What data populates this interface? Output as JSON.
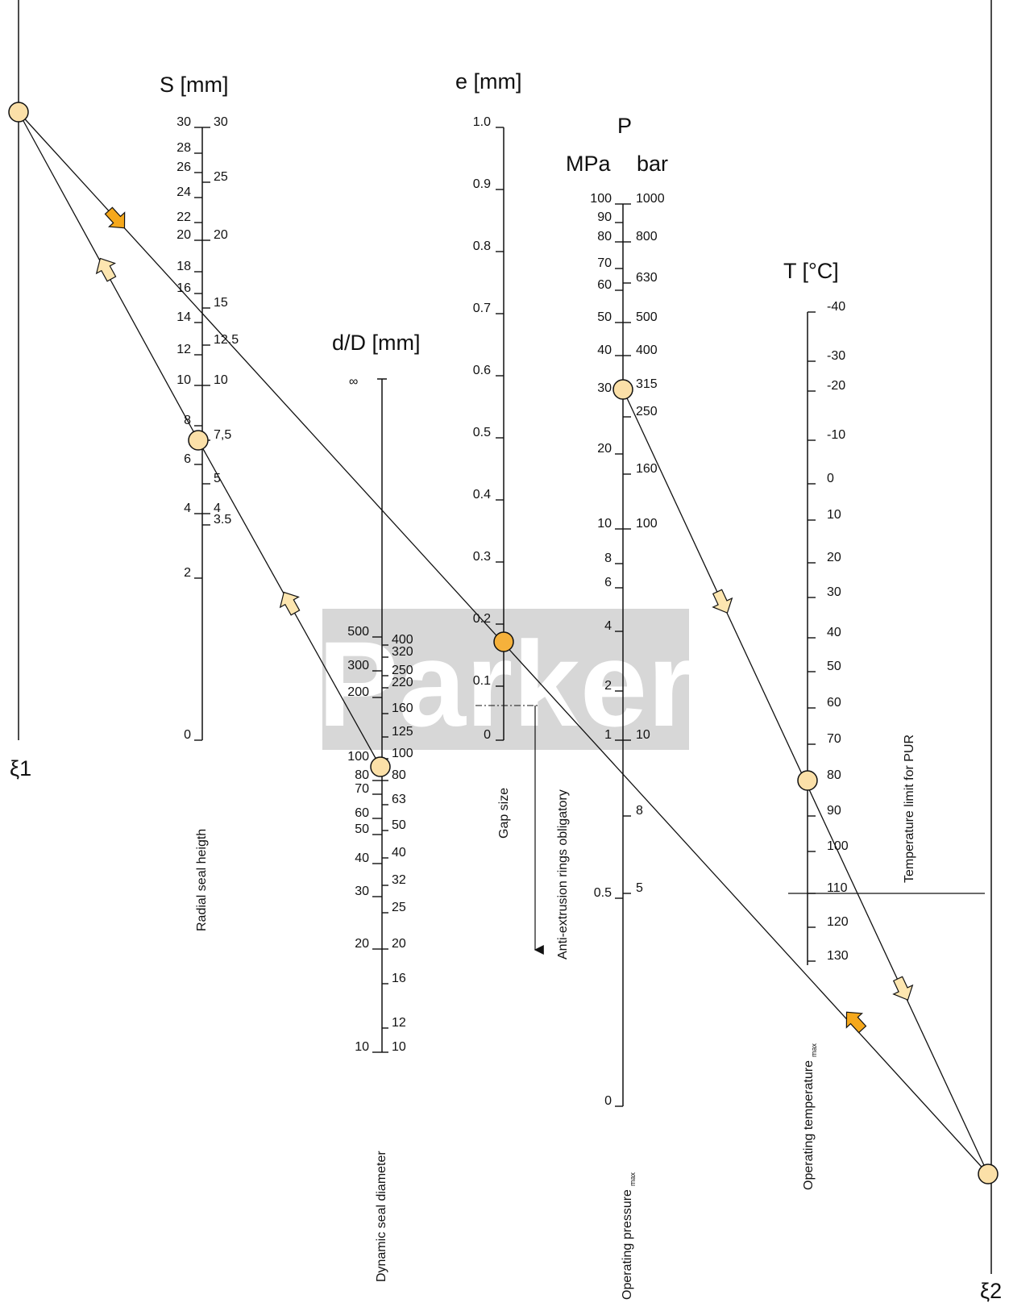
{
  "colors": {
    "ink": "#111111",
    "marker_light": "#fbe0a8",
    "marker_dark": "#f5b13b",
    "arrow_dark": "#f5a81c",
    "arrow_light": "#fde6b0",
    "watermark": "#d7d7d7"
  },
  "watermark": {
    "text": "Parker"
  },
  "pivot_labels": {
    "xi1": "ξ1",
    "xi2": "ξ2"
  },
  "scales": {
    "S": {
      "title": "S [mm]",
      "axis_label": "Radial seal heigth",
      "left_ticks": [
        "30",
        "28",
        "26",
        "24",
        "22",
        "20",
        "18",
        "16",
        "14",
        "12",
        "10",
        "8",
        "6",
        "4",
        "2",
        "0"
      ],
      "right_ticks": [
        "30",
        "25",
        "20",
        "15",
        "12.5",
        "10",
        "7,5",
        "5",
        "4",
        "3.5"
      ]
    },
    "D": {
      "title": "d/D [mm]",
      "top_label": "∞",
      "axis_label": "Dynamic seal diameter",
      "left_ticks": [
        "500",
        "300",
        "200",
        "100",
        "80",
        "70",
        "60",
        "50",
        "40",
        "30",
        "20",
        "10"
      ],
      "right_ticks": [
        "400",
        "320",
        "250",
        "220",
        "160",
        "125",
        "100",
        "80",
        "63",
        "50",
        "40",
        "32",
        "25",
        "20",
        "16",
        "12",
        "10"
      ]
    },
    "e": {
      "title": "e [mm]",
      "axis_label": "Gap size",
      "ticks": [
        "1.0",
        "0.9",
        "0.8",
        "0.7",
        "0.6",
        "0.5",
        "0.4",
        "0.3",
        "0.2",
        "0.1",
        "0"
      ]
    },
    "P": {
      "title": "P",
      "unit_left": "MPa",
      "unit_right": "bar",
      "axis_label": "Operating pressure",
      "axis_label_sub": "max",
      "left_ticks": [
        "100",
        "90",
        "80",
        "70",
        "60",
        "50",
        "40",
        "30",
        "20",
        "10",
        "8",
        "6",
        "4",
        "2",
        "1",
        "0.5",
        "0"
      ],
      "right_ticks": [
        "1000",
        "800",
        "630",
        "500",
        "400",
        "315",
        "250",
        "160",
        "100",
        "10",
        "8",
        "5"
      ]
    },
    "T": {
      "title": "T [°C]",
      "axis_label": "Operating temperature",
      "axis_label_sub": "max",
      "ticks": [
        "-40",
        "-30",
        "-20",
        "-10",
        "0",
        "10",
        "20",
        "30",
        "40",
        "50",
        "60",
        "70",
        "80",
        "90",
        "100",
        "110",
        "120",
        "130"
      ]
    }
  },
  "annotations": {
    "anti_extrusion": "Anti-extrusion rings obligatory",
    "temp_limit": "Temperature limit for PUR"
  }
}
